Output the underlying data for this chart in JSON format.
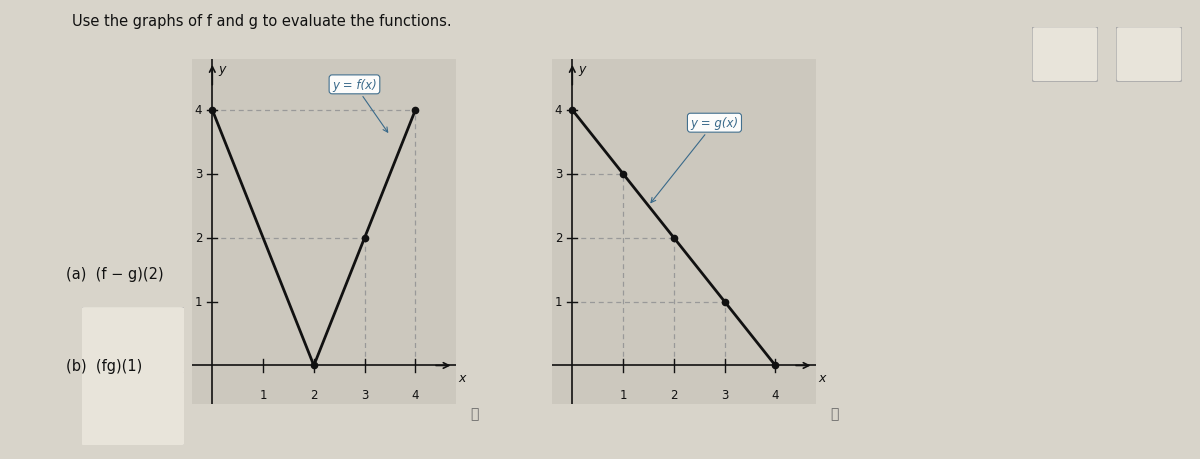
{
  "title": "Use the graphs of f and g to evaluate the functions.",
  "bg_color": "#d8d4ca",
  "panel_bg": "#ccc8be",
  "f_points": [
    [
      0,
      4
    ],
    [
      2,
      0
    ],
    [
      3,
      2
    ],
    [
      4,
      4
    ]
  ],
  "g_points": [
    [
      0,
      4
    ],
    [
      4,
      0
    ]
  ],
  "f_key_points": [
    [
      0,
      4
    ],
    [
      2,
      0
    ],
    [
      3,
      2
    ],
    [
      4,
      4
    ]
  ],
  "g_key_points": [
    [
      0,
      4
    ],
    [
      1,
      3
    ],
    [
      2,
      2
    ],
    [
      3,
      1
    ],
    [
      4,
      0
    ]
  ],
  "f_label": "y = f(x)",
  "g_label": "y = g(x)",
  "part_a_label": "(a)  (f − g)(2)",
  "part_b_label": "(b)  (fg)(1)",
  "line_color": "#111111",
  "dashed_color": "#999999",
  "dot_color": "#111111",
  "label_fg": "#3a6a8a",
  "label_bg": "#ffffff",
  "xlim": [
    -0.4,
    4.8
  ],
  "ylim": [
    -0.6,
    4.8
  ]
}
